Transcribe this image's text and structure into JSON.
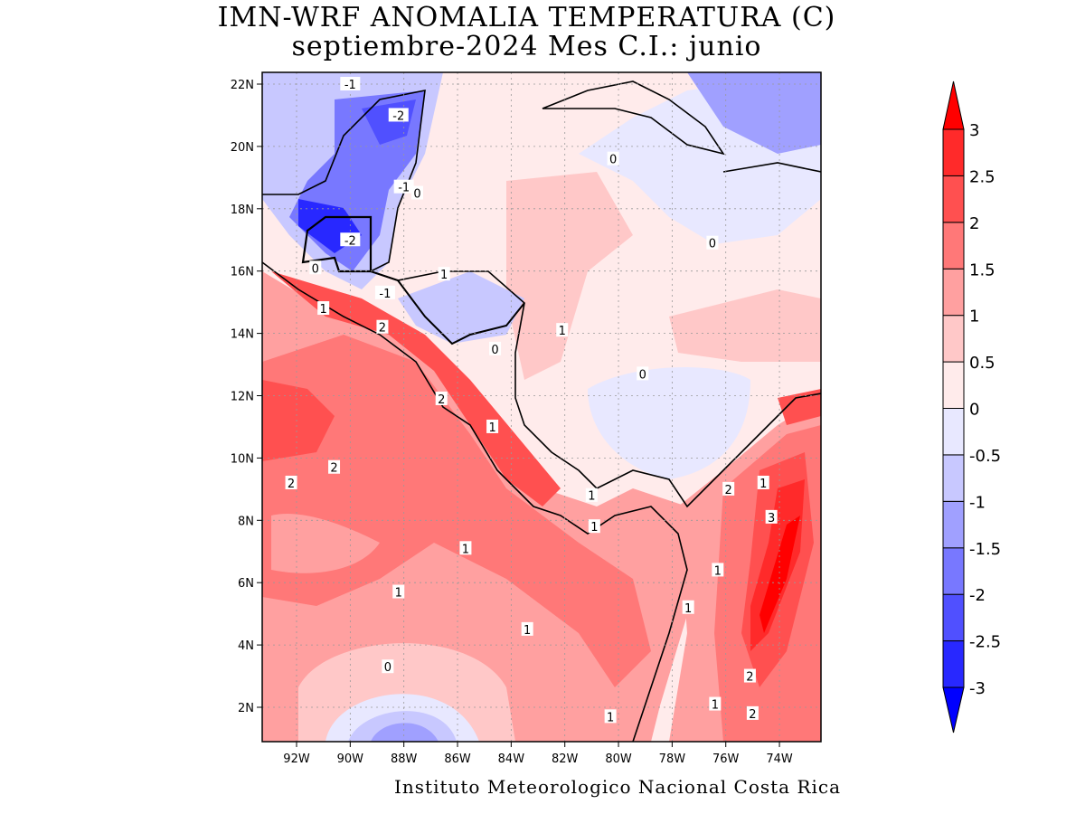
{
  "title": {
    "line1": "IMN-WRF  ANOMALIA TEMPERATURA (C)",
    "line2": "septiembre-2024 Mes C.I.: junio"
  },
  "map": {
    "type": "filled-contour map",
    "variable": "temperature anomaly",
    "lon_labels": [
      "92W",
      "90W",
      "88W",
      "86W",
      "84W",
      "82W",
      "80W",
      "78W",
      "76W",
      "74W"
    ],
    "lat_labels": [
      "22N",
      "20N",
      "18N",
      "16N",
      "14N",
      "12N",
      "10N",
      "8N",
      "6N",
      "4N",
      "2N"
    ],
    "grid": true,
    "contour_labels": [
      {
        "text": "-1",
        "lon": -90.0,
        "lat": 22.0
      },
      {
        "text": "-2",
        "lon": -88.2,
        "lat": 21.0
      },
      {
        "text": "0",
        "lon": -80.2,
        "lat": 19.6
      },
      {
        "text": "-1",
        "lon": -88.0,
        "lat": 18.7
      },
      {
        "text": "0",
        "lon": -87.5,
        "lat": 18.5
      },
      {
        "text": "-2",
        "lon": -90.0,
        "lat": 17.0
      },
      {
        "text": "0",
        "lon": -76.5,
        "lat": 16.9
      },
      {
        "text": "0",
        "lon": -91.3,
        "lat": 16.1
      },
      {
        "text": "1",
        "lon": -86.5,
        "lat": 15.9
      },
      {
        "text": "-1",
        "lon": -88.7,
        "lat": 15.3
      },
      {
        "text": "1",
        "lon": -91.0,
        "lat": 14.8
      },
      {
        "text": "2",
        "lon": -88.8,
        "lat": 14.2
      },
      {
        "text": "1",
        "lon": -82.1,
        "lat": 14.1
      },
      {
        "text": "0",
        "lon": -84.6,
        "lat": 13.5
      },
      {
        "text": "0",
        "lon": -79.1,
        "lat": 12.7
      },
      {
        "text": "2",
        "lon": -86.6,
        "lat": 11.9
      },
      {
        "text": "1",
        "lon": -84.7,
        "lat": 11.0
      },
      {
        "text": "2",
        "lon": -90.6,
        "lat": 9.7
      },
      {
        "text": "2",
        "lon": -92.2,
        "lat": 9.2
      },
      {
        "text": "2",
        "lon": -75.9,
        "lat": 9.0
      },
      {
        "text": "1",
        "lon": -74.6,
        "lat": 9.2
      },
      {
        "text": "1",
        "lon": -81.0,
        "lat": 8.8
      },
      {
        "text": "3",
        "lon": -74.3,
        "lat": 8.1
      },
      {
        "text": "1",
        "lon": -80.9,
        "lat": 7.8
      },
      {
        "text": "1",
        "lon": -85.7,
        "lat": 7.1
      },
      {
        "text": "1",
        "lon": -76.3,
        "lat": 6.4
      },
      {
        "text": "1",
        "lon": -88.2,
        "lat": 5.7
      },
      {
        "text": "1",
        "lon": -77.4,
        "lat": 5.2
      },
      {
        "text": "1",
        "lon": -83.4,
        "lat": 4.5
      },
      {
        "text": "0",
        "lon": -88.6,
        "lat": 3.3
      },
      {
        "text": "2",
        "lon": -75.1,
        "lat": 3.0
      },
      {
        "text": "1",
        "lon": -76.4,
        "lat": 2.1
      },
      {
        "text": "2",
        "lon": -75.0,
        "lat": 1.8
      },
      {
        "text": "1",
        "lon": -80.3,
        "lat": 1.7
      }
    ]
  },
  "colorbar": {
    "levels": [
      "-3",
      "-2.5",
      "-2",
      "-1.5",
      "-1",
      "-0.5",
      "0",
      "0.5",
      "1",
      "1.5",
      "2",
      "2.5",
      "3"
    ],
    "colors": [
      "#0000ff",
      "#2828ff",
      "#5050ff",
      "#7878ff",
      "#a0a0ff",
      "#c8c8ff",
      "#e8e8ff",
      "#ffebeb",
      "#ffc8c8",
      "#ffa0a0",
      "#ff7878",
      "#ff5050",
      "#ff2a2a",
      "#ff0000"
    ]
  },
  "footer": "Instituto Meteorologico Nacional Costa Rica"
}
